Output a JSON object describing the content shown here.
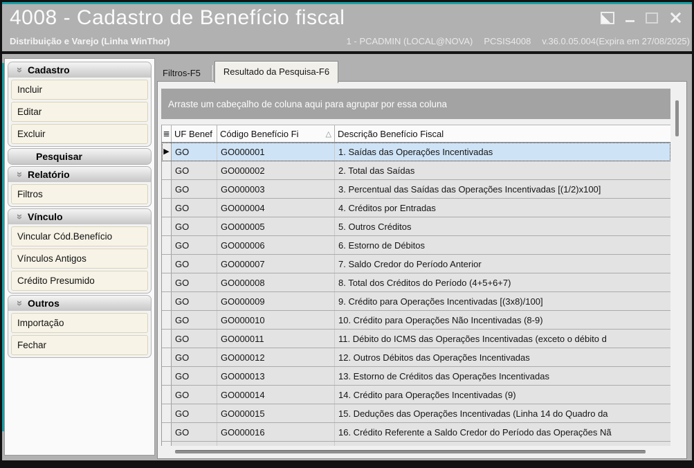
{
  "window": {
    "title": "4008 - Cadastro de Benefício fiscal",
    "app_line": "Distribuição e Varejo (Linha WinThor)",
    "session": {
      "user": "1 - PCADMIN (LOCAL@NOVA)",
      "program": "PCSIS4008",
      "version": "v.36.0.05.004(Expira em 27/08/2025)"
    },
    "controls": [
      "restore-icon",
      "minimize-icon",
      "maximize-icon",
      "close-icon"
    ]
  },
  "colors": {
    "accent_teal": "#17a0a5",
    "window_chrome": "#b1b1b1",
    "selected_row": "#cfe3f6",
    "sidebar_button": "#f7f3e6",
    "group_bar": "#a3a3a3"
  },
  "icons": {
    "section_chevron": "»",
    "column_chooser": "≣",
    "sort_asc": "△",
    "row_indicator": "▶"
  },
  "sidebar": {
    "sections": [
      {
        "title": "Cadastro",
        "items": [
          {
            "label": "Incluir"
          },
          {
            "label": "Editar"
          },
          {
            "label": "Excluir"
          }
        ]
      },
      {
        "title": "Pesquisar",
        "items": []
      },
      {
        "title": "Relatório",
        "items": [
          {
            "label": "Filtros"
          }
        ]
      },
      {
        "title": "Vínculo",
        "items": [
          {
            "label": "Vincular Cód.Benefício"
          },
          {
            "label": "Vínculos Antigos"
          },
          {
            "label": "Crédito Presumido"
          }
        ]
      },
      {
        "title": "Outros",
        "items": [
          {
            "label": "Importação"
          },
          {
            "label": "Fechar"
          }
        ]
      }
    ]
  },
  "tabs": [
    {
      "label": "Filtros-F5",
      "active": false
    },
    {
      "label": "Resultado da Pesquisa-F6",
      "active": true
    }
  ],
  "grid": {
    "group_hint": "Arraste um cabeçalho de coluna aqui para agrupar por essa coluna",
    "columns": [
      {
        "label": "UF Benef",
        "sort": null
      },
      {
        "label": "Código Benefício Fi",
        "sort": "asc"
      },
      {
        "label": "Descrição Benefício Fiscal",
        "sort": null
      }
    ],
    "rows": [
      {
        "uf": "GO",
        "codigo": "GO000001",
        "descricao": "1. Saídas das Operações Incentivadas",
        "selected": true
      },
      {
        "uf": "GO",
        "codigo": "GO000002",
        "descricao": "2. Total das Saídas",
        "selected": false
      },
      {
        "uf": "GO",
        "codigo": "GO000003",
        "descricao": "3. Percentual das Saídas das Operações Incentivadas [(1/2)x100]",
        "selected": false
      },
      {
        "uf": "GO",
        "codigo": "GO000004",
        "descricao": "4. Créditos por Entradas",
        "selected": false
      },
      {
        "uf": "GO",
        "codigo": "GO000005",
        "descricao": "5. Outros Créditos",
        "selected": false
      },
      {
        "uf": "GO",
        "codigo": "GO000006",
        "descricao": "6. Estorno de Débitos",
        "selected": false
      },
      {
        "uf": "GO",
        "codigo": "GO000007",
        "descricao": "7. Saldo Credor do Período Anterior",
        "selected": false
      },
      {
        "uf": "GO",
        "codigo": "GO000008",
        "descricao": "8. Total dos Créditos do Período (4+5+6+7)",
        "selected": false
      },
      {
        "uf": "GO",
        "codigo": "GO000009",
        "descricao": "9. Crédito para Operações Incentivadas [(3x8)/100]",
        "selected": false
      },
      {
        "uf": "GO",
        "codigo": "GO000010",
        "descricao": "10. Crédito para Operações Não Incentivadas (8-9)",
        "selected": false
      },
      {
        "uf": "GO",
        "codigo": "GO000011",
        "descricao": "11. Débito do ICMS das Operações Incentivadas (exceto o débito d",
        "selected": false
      },
      {
        "uf": "GO",
        "codigo": "GO000012",
        "descricao": "12. Outros Débitos das Operações Incentivadas",
        "selected": false
      },
      {
        "uf": "GO",
        "codigo": "GO000013",
        "descricao": "13. Estorno de Créditos das Operações Incentivadas",
        "selected": false
      },
      {
        "uf": "GO",
        "codigo": "GO000014",
        "descricao": "14. Crédito para Operações Incentivadas (9)",
        "selected": false
      },
      {
        "uf": "GO",
        "codigo": "GO000015",
        "descricao": "15. Deduções das Operações Incentivadas (Linha 14 do Quadro da",
        "selected": false
      },
      {
        "uf": "GO",
        "codigo": "GO000016",
        "descricao": "16. Crédito Referente a Saldo Credor do Período das Operações Nã",
        "selected": false
      }
    ]
  }
}
